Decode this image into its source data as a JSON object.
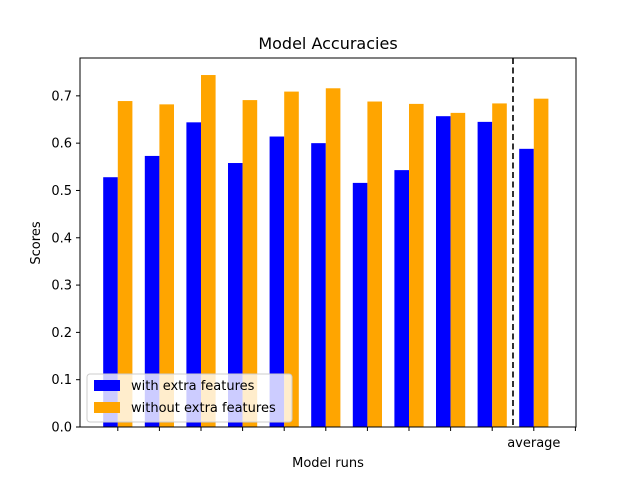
{
  "chart_data": {
    "type": "bar",
    "title": "Model Accuracies",
    "xlabel": "Model runs",
    "ylabel": "Scores",
    "ylim": [
      0,
      0.78
    ],
    "yticks": [
      0.0,
      0.1,
      0.2,
      0.3,
      0.4,
      0.5,
      0.6,
      0.7
    ],
    "ytick_labels": [
      "0.0",
      "0.1",
      "0.2",
      "0.3",
      "0.4",
      "0.5",
      "0.6",
      "0.7"
    ],
    "categories": [
      "",
      "",
      "",
      "",
      "",
      "",
      "",
      "",
      "",
      "",
      "average"
    ],
    "series": [
      {
        "name": "with extra features",
        "color": "#0000ff",
        "values": [
          0.528,
          0.573,
          0.644,
          0.558,
          0.614,
          0.6,
          0.516,
          0.543,
          0.657,
          0.645,
          0.588
        ]
      },
      {
        "name": "without extra features",
        "color": "#ffa500",
        "values": [
          0.689,
          0.682,
          0.744,
          0.691,
          0.709,
          0.716,
          0.688,
          0.683,
          0.664,
          0.684,
          0.694
        ]
      }
    ],
    "separator": {
      "style": "dashed",
      "color": "#000000"
    },
    "grid": false,
    "legend": "lower-left"
  }
}
